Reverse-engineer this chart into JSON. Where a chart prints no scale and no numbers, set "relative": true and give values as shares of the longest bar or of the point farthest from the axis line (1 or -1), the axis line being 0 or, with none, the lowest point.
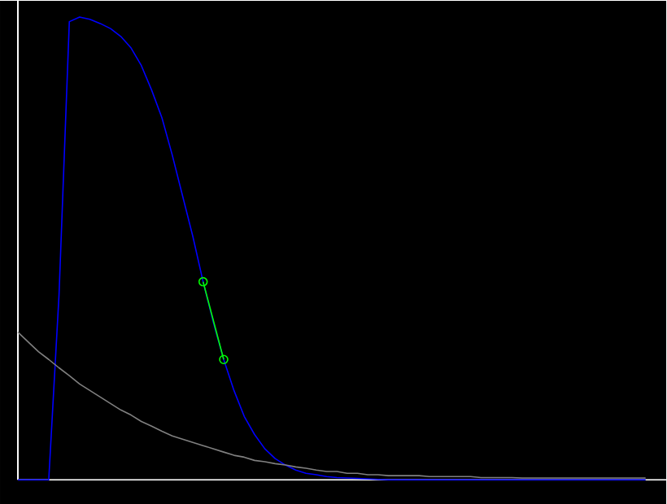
{
  "chart_data": {
    "type": "line",
    "relative": true,
    "categories": [
      null,
      null,
      null,
      null,
      null,
      null,
      null,
      null,
      null,
      null,
      null,
      null,
      null,
      null,
      null,
      null,
      null,
      null,
      null,
      null,
      null,
      null,
      null,
      null,
      null,
      null,
      null,
      null,
      null,
      null,
      null,
      null,
      null,
      null,
      null,
      null,
      null,
      null,
      null,
      null,
      null,
      null,
      null,
      null,
      null,
      null,
      null,
      null,
      null,
      null,
      null,
      null,
      null,
      null,
      null,
      null,
      null,
      null,
      null,
      null,
      null,
      null
    ],
    "series": [
      {
        "color": "#0000ff",
        "marker": "none",
        "values": [
          0,
          0,
          0,
          0,
          0.4,
          0.99,
          1,
          0.995,
          0.986,
          0.975,
          0.958,
          0.933,
          0.895,
          0.842,
          0.782,
          0.702,
          0.614,
          0.526,
          0.428,
          0.34,
          0.26,
          0.193,
          0.137,
          0.098,
          0.067,
          0.046,
          0.032,
          0.021,
          0.014,
          0.011,
          0.007,
          0.005,
          0.004,
          0.003,
          0.002,
          0.001,
          0,
          0,
          0,
          0,
          0,
          0,
          0,
          0,
          0,
          0,
          0,
          0,
          0,
          0,
          0,
          0,
          0,
          0,
          0,
          0,
          0,
          0,
          0,
          0,
          0,
          0
        ]
      },
      {
        "color": "#808080",
        "marker": "none",
        "values": [
          0.319,
          0.298,
          0.277,
          0.26,
          0.242,
          0.225,
          0.207,
          0.193,
          0.179,
          0.165,
          0.151,
          0.14,
          0.126,
          0.116,
          0.105,
          0.095,
          0.088,
          0.081,
          0.074,
          0.067,
          0.06,
          0.053,
          0.049,
          0.042,
          0.039,
          0.035,
          0.032,
          0.028,
          0.025,
          0.021,
          0.018,
          0.018,
          0.014,
          0.014,
          0.011,
          0.011,
          0.009,
          0.009,
          0.009,
          0.009,
          0.007,
          0.007,
          0.007,
          0.007,
          0.007,
          0.005,
          0.005,
          0.005,
          0.005,
          0.004,
          0.004,
          0.004,
          0.004,
          0.004,
          0.004,
          0.004,
          0.004,
          0.004,
          0.004,
          0.004,
          0.004,
          0.004
        ]
      },
      {
        "type": "line",
        "color": "#00ff00",
        "marker": "circle",
        "values": [
          null,
          null,
          null,
          null,
          null,
          null,
          null,
          null,
          null,
          null,
          null,
          null,
          null,
          null,
          null,
          null,
          null,
          null,
          0.428,
          null,
          0.26,
          null,
          null,
          null,
          null,
          null,
          null,
          null,
          null,
          null,
          null,
          null,
          null,
          null,
          null,
          null,
          null,
          null,
          null,
          null,
          null,
          null,
          null,
          null,
          null,
          null,
          null,
          null,
          null,
          null,
          null,
          null,
          null,
          null,
          null,
          null,
          null,
          null,
          null,
          null,
          null,
          null
        ]
      }
    ]
  }
}
